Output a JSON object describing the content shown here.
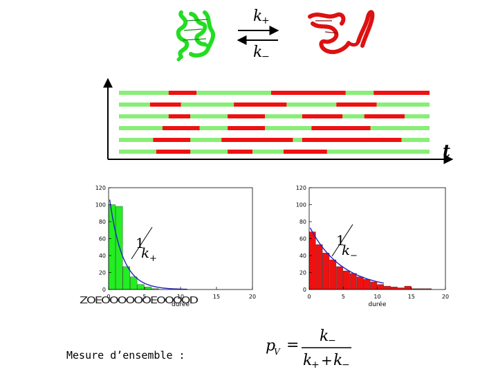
{
  "scheme": {
    "rate_forward": "k+",
    "rate_backward": "k−",
    "folded_color": "#22dd22",
    "unfolded_color": "#dd1111"
  },
  "traces": {
    "axis_label": "t",
    "state_colors": {
      "A": "#88ee77",
      "B": "#ee1111"
    },
    "rows": [
      [
        [
          "A",
          0.0,
          0.16
        ],
        [
          "B",
          0.16,
          0.25
        ],
        [
          "A",
          0.25,
          0.49
        ],
        [
          "B",
          0.49,
          0.73
        ],
        [
          "A",
          0.73,
          0.82
        ],
        [
          "B",
          0.82,
          1.0
        ]
      ],
      [
        [
          "A",
          0.0,
          0.1
        ],
        [
          "B",
          0.1,
          0.2
        ],
        [
          "A",
          0.2,
          0.37
        ],
        [
          "B",
          0.37,
          0.54
        ],
        [
          "A",
          0.54,
          0.7
        ],
        [
          "B",
          0.7,
          0.83
        ],
        [
          "A",
          0.83,
          1.0
        ]
      ],
      [
        [
          "A",
          0.0,
          0.16
        ],
        [
          "B",
          0.16,
          0.23
        ],
        [
          "A",
          0.23,
          0.35
        ],
        [
          "B",
          0.35,
          0.47
        ],
        [
          "A",
          0.47,
          0.59
        ],
        [
          "B",
          0.59,
          0.72
        ],
        [
          "A",
          0.72,
          0.79
        ],
        [
          "B",
          0.79,
          0.92
        ],
        [
          "A",
          0.92,
          1.0
        ]
      ],
      [
        [
          "A",
          0.0,
          0.14
        ],
        [
          "B",
          0.14,
          0.26
        ],
        [
          "A",
          0.26,
          0.35
        ],
        [
          "B",
          0.35,
          0.47
        ],
        [
          "A",
          0.47,
          0.62
        ],
        [
          "B",
          0.62,
          0.81
        ],
        [
          "A",
          0.81,
          1.0
        ]
      ],
      [
        [
          "A",
          0.0,
          0.11
        ],
        [
          "B",
          0.11,
          0.23
        ],
        [
          "A",
          0.23,
          0.33
        ],
        [
          "B",
          0.33,
          0.56
        ],
        [
          "A",
          0.56,
          0.59
        ],
        [
          "B",
          0.59,
          0.91
        ],
        [
          "A",
          0.91,
          1.0
        ]
      ],
      [
        [
          "A",
          0.0,
          0.12
        ],
        [
          "B",
          0.12,
          0.23
        ],
        [
          "A",
          0.23,
          0.35
        ],
        [
          "B",
          0.35,
          0.43
        ],
        [
          "A",
          0.43,
          0.53
        ],
        [
          "B",
          0.53,
          0.67
        ],
        [
          "A",
          0.67,
          1.0
        ]
      ]
    ]
  },
  "histograms": [
    {
      "name": "left",
      "bar_color": "#22ee22",
      "xlabel": "durée",
      "xticks": [
        "0",
        "5",
        "10",
        "15",
        "20"
      ],
      "yticks": [
        "0",
        "20",
        "40",
        "60",
        "80",
        "100",
        "120"
      ],
      "xlim": [
        0,
        20
      ],
      "ylim": [
        0,
        120
      ],
      "bin_width": 1,
      "values": [
        100,
        98,
        27,
        15,
        6,
        3,
        1
      ],
      "fit_amplitude": 115,
      "fit_rate": 0.55,
      "annotation_num": "1",
      "annotation_den": "k+",
      "overlay_garble": "ZOEOOOOOOEOOOOD"
    },
    {
      "name": "right",
      "bar_color": "#ee1111",
      "xlabel": "durée",
      "xticks": [
        "0",
        "5",
        "10",
        "15",
        "20"
      ],
      "yticks": [
        "0",
        "20",
        "40",
        "60",
        "80",
        "100",
        "120"
      ],
      "xlim": [
        0,
        20
      ],
      "ylim": [
        0,
        120
      ],
      "bin_width": 1,
      "values": [
        68,
        53,
        43,
        35,
        27,
        22,
        19,
        15,
        12,
        9,
        6,
        4,
        3,
        2,
        4,
        1,
        1,
        1
      ],
      "fit_amplitude": 75,
      "fit_rate": 0.21,
      "annotation_num": "1",
      "annotation_den": "k−"
    }
  ],
  "footer": {
    "ensemble_label": "Mesure d’ensemble :",
    "formula_lhs": "p",
    "formula_lhs_sub": "V",
    "formula_eq": "=",
    "formula_num": "k−",
    "formula_den": "k+ + k−"
  }
}
